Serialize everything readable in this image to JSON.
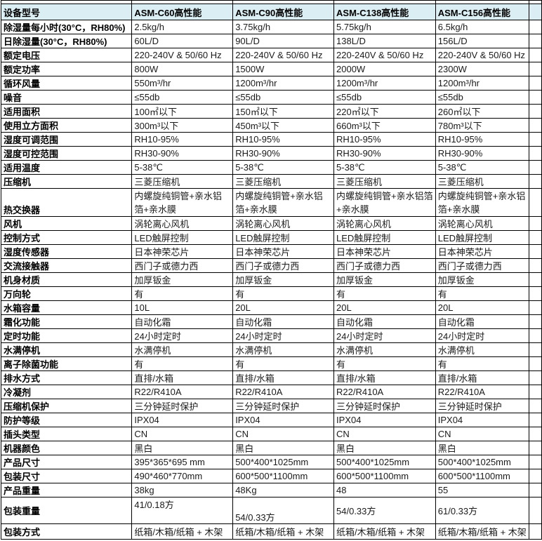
{
  "colors": {
    "header_bg": "#DAEEF3",
    "border": "#000000",
    "text": "#1a1a1a"
  },
  "table": {
    "header": {
      "col0": "设备型号",
      "models": [
        "ASM-C60高性能",
        "ASM-C90高性能",
        "ASM-C138高性能",
        "ASM-C156高性能"
      ]
    },
    "rows": [
      {
        "label": "除湿量每小时(30°C，RH80%)",
        "values": [
          "2.5kg/h",
          "3.75kg/h",
          "5.75kg/h",
          "6.5kg/h"
        ]
      },
      {
        "label": "日除湿量(30°C，RH80%)",
        "values": [
          "60L/D",
          "90L/D",
          "138L/D",
          "156L/D"
        ]
      },
      {
        "label": "额定电压",
        "values": [
          "220-240V & 50/60 Hz",
          "220-240V & 50/60 Hz",
          "220-240V & 50/60 Hz",
          "220-240V & 50/60 Hz"
        ]
      },
      {
        "label": "额定功率",
        "values": [
          "800W",
          "1500W",
          "2000W",
          "2300W"
        ]
      },
      {
        "label": "循环风量",
        "values": [
          "550m³/hr",
          "1200m³/hr",
          "1200m³/hr",
          "1200m³/hr"
        ]
      },
      {
        "label": "噪音",
        "values": [
          "≤55db",
          "≤55db",
          "≤55db",
          "≤55db"
        ]
      },
      {
        "label": "适用面积",
        "values": [
          "100㎡以下",
          "150㎡以下",
          "220㎡以下",
          "260㎡以下"
        ]
      },
      {
        "label": "使用立方面积",
        "values": [
          "300m³以下",
          "450m³以下",
          "660m³以下",
          "780m³以下"
        ]
      },
      {
        "label": "湿度可调范围",
        "values": [
          "RH10-95%",
          "RH10-95%",
          "RH10-95%",
          "RH10-95%"
        ]
      },
      {
        "label": "湿度可控范围",
        "values": [
          "RH30-90%",
          "RH30-90%",
          "RH30-90%",
          "RH30-90%"
        ]
      },
      {
        "label": "适用温度",
        "values": [
          "5-38℃",
          "5-38℃",
          "5-38℃",
          "5-38℃"
        ]
      },
      {
        "label": "压缩机",
        "values": [
          "三菱压缩机",
          "三菱压缩机",
          "三菱压缩机",
          "三菱压缩机"
        ]
      },
      {
        "label": "热交换器",
        "values": [
          "内螺旋纯铜管+亲水铝箔+亲水膜",
          "内螺旋纯铜管+亲水铝箔+亲水膜",
          "内螺旋纯铜管+亲水铝箔+亲水膜",
          "内螺旋纯铜管+亲水铝箔+亲水膜"
        ]
      },
      {
        "label": "风机",
        "values": [
          "涡轮离心风机",
          "涡轮离心风机",
          "涡轮离心风机",
          "涡轮离心风机"
        ]
      },
      {
        "label": "控制方式",
        "values": [
          "LED触屏控制",
          "LED触屏控制",
          "LED触屏控制",
          "LED触屏控制"
        ]
      },
      {
        "label": "湿度传感器",
        "values": [
          "日本神荣芯片",
          "日本神荣芯片",
          "日本神荣芯片",
          "日本神荣芯片"
        ]
      },
      {
        "label": "交流接触器",
        "values": [
          "西门子或德力西",
          "西门子或德力西",
          "西门子或德力西",
          "西门子或德力西"
        ]
      },
      {
        "label": "机身材质",
        "values": [
          "加厚钣金",
          "加厚钣金",
          "加厚钣金",
          "加厚钣金"
        ]
      },
      {
        "label": "万向轮",
        "values": [
          "有",
          "有",
          "有",
          "有"
        ]
      },
      {
        "label": "水箱容量",
        "values": [
          "10L",
          "20L",
          "20L",
          "20L"
        ]
      },
      {
        "label": "霜化功能",
        "values": [
          "自动化霜",
          "自动化霜",
          "自动化霜",
          "自动化霜"
        ]
      },
      {
        "label": "定时功能",
        "values": [
          "24小时定时",
          "24小时定时",
          "24小时定时",
          "24小时定时"
        ]
      },
      {
        "label": "水满停机",
        "values": [
          "水满停机",
          "水满停机",
          "水满停机",
          "水满停机"
        ]
      },
      {
        "label": "离子除菌功能",
        "values": [
          "有",
          "有",
          "有",
          "有"
        ]
      },
      {
        "label": "排水方式",
        "values": [
          "直排/水箱",
          "直排/水箱",
          "直排/水箱",
          "直排/水箱"
        ]
      },
      {
        "label": "冷凝剂",
        "values": [
          "R22/R410A",
          "R22/R410A",
          "R22/R410A",
          "R22/R410A"
        ]
      },
      {
        "label": "压缩机保护",
        "values": [
          "三分钟延时保护",
          "三分钟延时保护",
          "三分钟延时保护",
          "三分钟延时保护"
        ]
      },
      {
        "label": "防护等级",
        "values": [
          "IPX04",
          "IPX04",
          "IPX04",
          "IPX04"
        ]
      },
      {
        "label": "插头类型",
        "values": [
          "CN",
          "CN",
          "CN",
          "CN"
        ]
      },
      {
        "label": "机器颜色",
        "values": [
          "黑白",
          "黑白",
          "黑白",
          "黑白"
        ]
      },
      {
        "label": "产品尺寸",
        "values": [
          "395*365*695 mm",
          "500*400*1025mm",
          "500*400*1025mm",
          "500*400*1025mm"
        ]
      },
      {
        "label": "包装尺寸",
        "values": [
          "490*460*770mm",
          "600*500*1100mm",
          "600*500*1100mm",
          "600*500*1100mm"
        ]
      },
      {
        "label": "产品重量",
        "values": [
          "38kg",
          "48Kg",
          "48",
          "55"
        ]
      },
      {
        "label": "包装重量",
        "values": [
          "41/0.18方",
          "54/0.33方",
          "54/0.33方",
          "61/0.33方"
        ]
      },
      {
        "label": "包装方式",
        "values": [
          "纸箱/木箱/纸箱 + 木架",
          "纸箱/木箱/纸箱 + 木架",
          "纸箱/木箱/纸箱 + 木架",
          "纸箱/木箱/纸箱 + 木架"
        ]
      }
    ]
  }
}
